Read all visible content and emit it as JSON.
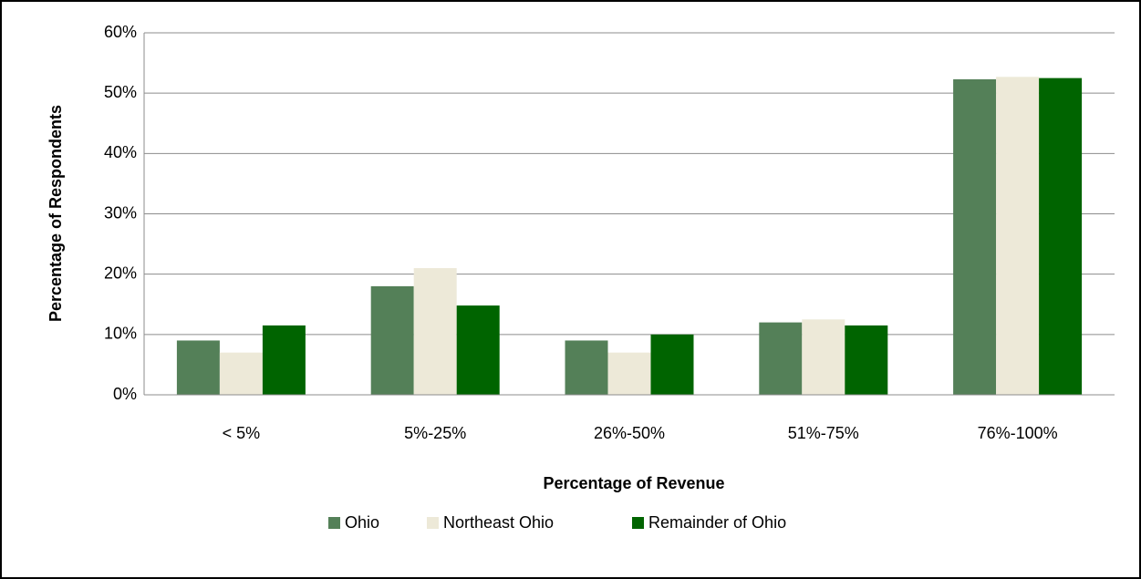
{
  "chart_data": {
    "type": "bar",
    "x_label": "Percentage of Revenue",
    "y_label": "Percentage of Respondents",
    "categories": [
      "< 5%",
      "5%-25%",
      "26%-50%",
      "51%-75%",
      "76%-100%"
    ],
    "series": [
      {
        "name": "Ohio",
        "color": "#548058",
        "values": [
          9,
          18,
          9,
          12,
          52.3
        ]
      },
      {
        "name": "Northeast Ohio",
        "color": "#ede9d8",
        "values": [
          7,
          21,
          7,
          12.5,
          52.7
        ]
      },
      {
        "name": "Remainder of Ohio",
        "color": "#006400",
        "values": [
          11.5,
          14.8,
          10,
          11.5,
          52.5
        ]
      }
    ],
    "ylim": [
      0,
      60
    ],
    "yticks": [
      {
        "value": 0,
        "label": "0%"
      },
      {
        "value": 10,
        "label": "10%"
      },
      {
        "value": 20,
        "label": "20%"
      },
      {
        "value": 30,
        "label": "30%"
      },
      {
        "value": 40,
        "label": "40%"
      },
      {
        "value": 50,
        "label": "50%"
      },
      {
        "value": 60,
        "label": "60%"
      }
    ],
    "grid": true,
    "legend": "bottom"
  }
}
